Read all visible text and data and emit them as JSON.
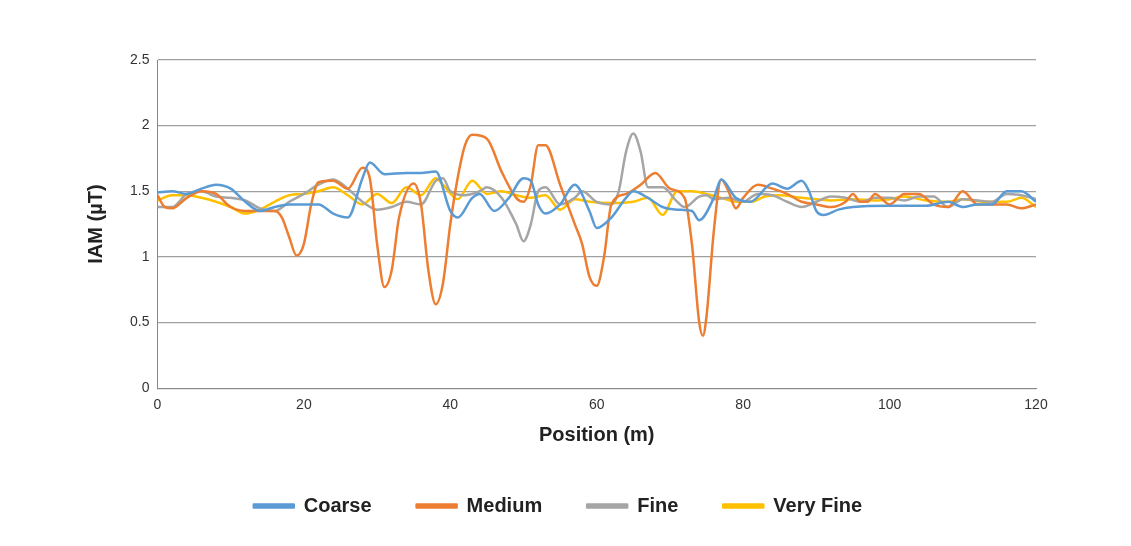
{
  "chart_data": {
    "type": "line",
    "xlabel": "Position (m)",
    "ylabel": "IAM (µT)",
    "xlim": [
      0,
      120
    ],
    "xticks": [
      0,
      20,
      40,
      60,
      80,
      100,
      120
    ],
    "ylim": [
      0,
      2.5
    ],
    "yticks": [
      0,
      0.5,
      1,
      1.5,
      2,
      2.5
    ],
    "grid": "y",
    "legend": "bottom",
    "marker": "none",
    "line_style": "solid",
    "series": [
      {
        "name": "Coarse",
        "color": "#5b9bd5",
        "x": [
          0,
          2,
          4,
          6,
          8,
          10,
          12,
          14,
          16,
          18,
          20,
          22,
          24,
          26,
          28,
          29,
          31,
          34,
          36,
          38,
          40,
          41,
          43,
          44,
          46,
          48,
          50,
          51,
          52,
          53,
          55,
          57,
          59,
          60,
          62,
          64,
          65,
          67,
          69,
          71,
          73,
          74,
          76,
          77,
          79,
          81,
          84,
          86,
          88,
          89,
          90,
          91,
          93,
          95,
          100,
          105,
          108,
          110,
          112,
          114,
          116,
          118,
          120
        ],
        "values": [
          1.49,
          1.5,
          1.48,
          1.52,
          1.55,
          1.52,
          1.42,
          1.35,
          1.38,
          1.4,
          1.4,
          1.4,
          1.33,
          1.3,
          1.6,
          1.72,
          1.63,
          1.64,
          1.64,
          1.65,
          1.35,
          1.3,
          1.45,
          1.48,
          1.35,
          1.45,
          1.6,
          1.58,
          1.4,
          1.33,
          1.4,
          1.55,
          1.35,
          1.22,
          1.3,
          1.45,
          1.5,
          1.45,
          1.38,
          1.36,
          1.35,
          1.28,
          1.45,
          1.59,
          1.45,
          1.42,
          1.56,
          1.52,
          1.58,
          1.5,
          1.35,
          1.32,
          1.36,
          1.38,
          1.39,
          1.39,
          1.42,
          1.38,
          1.4,
          1.4,
          1.5,
          1.5,
          1.42
        ]
      },
      {
        "name": "Medium",
        "color": "#ed7d31",
        "x": [
          0,
          1,
          2,
          4,
          6,
          8,
          10,
          12,
          14,
          16,
          17,
          18,
          19,
          20,
          21,
          22,
          24,
          26,
          28,
          29,
          30,
          31,
          32,
          33,
          35,
          36,
          37,
          38,
          39,
          40,
          41,
          42,
          43,
          45,
          47,
          49,
          50,
          51,
          52,
          53,
          55,
          57,
          58,
          59,
          60,
          61,
          62,
          64,
          66,
          68,
          70,
          72,
          73,
          74,
          74.5,
          75,
          76,
          77,
          78,
          79,
          80,
          82,
          84,
          86,
          88,
          90,
          92,
          94,
          95,
          96,
          97,
          98,
          100,
          102,
          104,
          106,
          108,
          110,
          112,
          114,
          116,
          118,
          120
        ],
        "values": [
          1.47,
          1.38,
          1.37,
          1.45,
          1.5,
          1.48,
          1.38,
          1.35,
          1.35,
          1.35,
          1.3,
          1.15,
          1.01,
          1.1,
          1.4,
          1.57,
          1.58,
          1.52,
          1.68,
          1.6,
          1.1,
          0.77,
          0.9,
          1.3,
          1.56,
          1.4,
          0.9,
          0.64,
          0.8,
          1.25,
          1.6,
          1.85,
          1.93,
          1.9,
          1.65,
          1.45,
          1.42,
          1.55,
          1.85,
          1.85,
          1.55,
          1.25,
          1.1,
          0.85,
          0.78,
          1.0,
          1.4,
          1.48,
          1.55,
          1.64,
          1.52,
          1.45,
          1.1,
          0.5,
          0.4,
          0.55,
          1.2,
          1.59,
          1.5,
          1.37,
          1.45,
          1.55,
          1.52,
          1.48,
          1.42,
          1.4,
          1.38,
          1.42,
          1.48,
          1.42,
          1.42,
          1.48,
          1.4,
          1.48,
          1.48,
          1.4,
          1.38,
          1.5,
          1.4,
          1.4,
          1.4,
          1.37,
          1.4
        ]
      },
      {
        "name": "Fine",
        "color": "#a5a5a5",
        "x": [
          0,
          2,
          4,
          6,
          8,
          10,
          12,
          14,
          16,
          18,
          20,
          22,
          24,
          26,
          28,
          30,
          32,
          34,
          36,
          38,
          39,
          40,
          42,
          44,
          45,
          47,
          49,
          50,
          51,
          52,
          53,
          55,
          57,
          58,
          60,
          62,
          63,
          64,
          65,
          66,
          67,
          69,
          71,
          72,
          74,
          75,
          76,
          78,
          80,
          82,
          84,
          86,
          88,
          90,
          92,
          94,
          96,
          98,
          100,
          102,
          104,
          106,
          108,
          110,
          114,
          116,
          118,
          120
        ],
        "values": [
          1.38,
          1.38,
          1.48,
          1.5,
          1.46,
          1.45,
          1.43,
          1.37,
          1.35,
          1.42,
          1.48,
          1.55,
          1.59,
          1.52,
          1.42,
          1.36,
          1.38,
          1.42,
          1.4,
          1.58,
          1.6,
          1.5,
          1.47,
          1.5,
          1.53,
          1.45,
          1.25,
          1.12,
          1.25,
          1.5,
          1.53,
          1.4,
          1.45,
          1.5,
          1.42,
          1.4,
          1.5,
          1.8,
          1.94,
          1.8,
          1.53,
          1.53,
          1.42,
          1.38,
          1.46,
          1.47,
          1.44,
          1.45,
          1.42,
          1.48,
          1.47,
          1.42,
          1.38,
          1.42,
          1.46,
          1.45,
          1.42,
          1.45,
          1.45,
          1.43,
          1.46,
          1.46,
          1.38,
          1.44,
          1.42,
          1.48,
          1.47,
          1.44
        ]
      },
      {
        "name": "Very Fine",
        "color": "#ffc000",
        "x": [
          0,
          2,
          4,
          6,
          8,
          10,
          12,
          14,
          16,
          18,
          20,
          22,
          24,
          26,
          28,
          30,
          32,
          34,
          36,
          38,
          39,
          41,
          43,
          45,
          47,
          49,
          51,
          53,
          55,
          57,
          59,
          62,
          65,
          67,
          69,
          71,
          73,
          75,
          77,
          79,
          81,
          83,
          85,
          88,
          90,
          92,
          95,
          98,
          100,
          102,
          105,
          108,
          110,
          113,
          116,
          118,
          120
        ],
        "values": [
          1.43,
          1.47,
          1.47,
          1.45,
          1.42,
          1.38,
          1.33,
          1.36,
          1.42,
          1.47,
          1.48,
          1.5,
          1.53,
          1.47,
          1.4,
          1.48,
          1.41,
          1.53,
          1.47,
          1.6,
          1.55,
          1.44,
          1.58,
          1.48,
          1.5,
          1.47,
          1.45,
          1.47,
          1.36,
          1.44,
          1.42,
          1.41,
          1.42,
          1.45,
          1.32,
          1.5,
          1.5,
          1.48,
          1.45,
          1.42,
          1.42,
          1.46,
          1.47,
          1.45,
          1.44,
          1.43,
          1.44,
          1.43,
          1.44,
          1.46,
          1.43,
          1.42,
          1.44,
          1.42,
          1.42,
          1.45,
          1.38
        ]
      }
    ]
  }
}
